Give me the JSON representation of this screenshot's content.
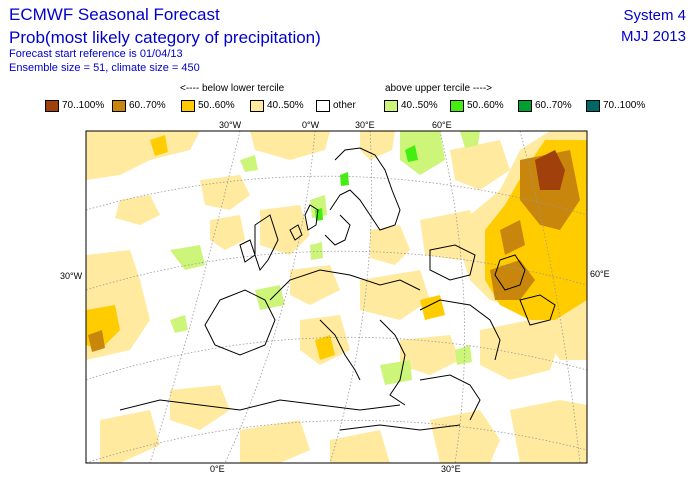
{
  "header": {
    "title": "ECMWF Seasonal Forecast",
    "subtitle": "Prob(most likely category of precipitation)",
    "forecast_ref": "Forecast start reference is 01/04/13",
    "ensemble": "Ensemble size = 51, climate size = 450",
    "system": "System 4",
    "period": "MJJ 2013"
  },
  "legend": {
    "below_label": "<---- below lower tercile",
    "above_label": "above upper tercile ---->",
    "items": [
      {
        "label": "70..100%",
        "color": "#a0400a"
      },
      {
        "label": "60..70%",
        "color": "#c8860c"
      },
      {
        "label": "50..60%",
        "color": "#ffcc00"
      },
      {
        "label": "40..50%",
        "color": "#ffeaa0"
      },
      {
        "label": "other",
        "color": "#ffffff"
      },
      {
        "label": "40..50%",
        "color": "#ccf57a"
      },
      {
        "label": "50..60%",
        "color": "#44ee11"
      },
      {
        "label": "60..70%",
        "color": "#00a030"
      },
      {
        "label": "70..100%",
        "color": "#006666"
      }
    ]
  },
  "map": {
    "graticule_labels": {
      "top": [
        "30°W",
        "0°W",
        "30°E",
        "60°E"
      ],
      "left": [
        "30°W"
      ],
      "right": [
        "60°E"
      ],
      "bottom": [
        "0°E",
        "30°E"
      ]
    }
  }
}
